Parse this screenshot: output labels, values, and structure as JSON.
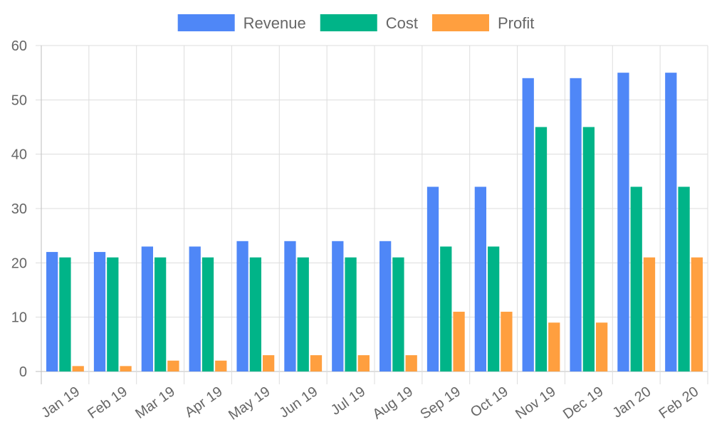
{
  "chart_data": {
    "type": "bar",
    "categories": [
      "Jan 19",
      "Feb 19",
      "Mar 19",
      "Apr 19",
      "May 19",
      "Jun 19",
      "Jul 19",
      "Aug 19",
      "Sep 19",
      "Oct 19",
      "Nov 19",
      "Dec 19",
      "Jan 20",
      "Feb 20"
    ],
    "series": [
      {
        "name": "Revenue",
        "color": "#4f87f7",
        "values": [
          22,
          22,
          23,
          23,
          24,
          24,
          24,
          24,
          34,
          34,
          54,
          54,
          55,
          55
        ]
      },
      {
        "name": "Cost",
        "color": "#00b488",
        "values": [
          21,
          21,
          21,
          21,
          21,
          21,
          21,
          21,
          23,
          23,
          45,
          45,
          34,
          34
        ]
      },
      {
        "name": "Profit",
        "color": "#ff9f3f",
        "values": [
          1,
          1,
          2,
          2,
          3,
          3,
          3,
          3,
          11,
          11,
          9,
          9,
          21,
          21
        ]
      }
    ],
    "ylim": [
      0,
      60
    ],
    "yticks": [
      0,
      10,
      20,
      30,
      40,
      50,
      60
    ],
    "grid": true,
    "legend_position": "top-center",
    "xlabel": "",
    "ylabel": "",
    "title": ""
  }
}
